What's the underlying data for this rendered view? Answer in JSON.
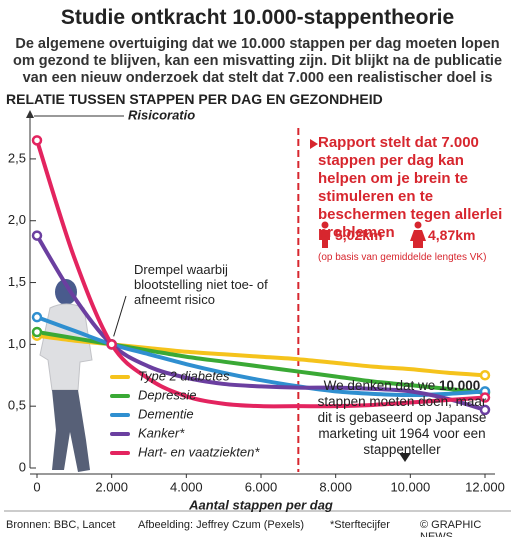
{
  "header": {
    "title": "Studie ontkracht 10.000-stappentheorie",
    "subtitle": "De algemene overtuiging dat we 10.000 stappen per dag moeten lopen om gezond te blijven, kan een misvatting zijn. Dit blijkt na de publicatie van een nieuw onderzoek dat stelt dat 7.000 een realistischer doel is"
  },
  "chart_data": {
    "type": "line",
    "title": "RELATIE TUSSEN STAPPEN PER DAG EN GEZONDHEID",
    "y_label": "Risicoratio",
    "x_label": "Aantal stappen per dag",
    "x": [
      0,
      1000,
      2000,
      3000,
      4000,
      5000,
      6000,
      7000,
      8000,
      9000,
      10000,
      11000,
      12000
    ],
    "series": [
      {
        "name": "Type 2 diabetes",
        "color": "#f5c31c",
        "values": [
          1.07,
          1.03,
          1.0,
          0.97,
          0.94,
          0.92,
          0.9,
          0.88,
          0.85,
          0.82,
          0.8,
          0.77,
          0.75
        ]
      },
      {
        "name": "Depressie",
        "color": "#3aa935",
        "values": [
          1.1,
          1.05,
          1.0,
          0.95,
          0.9,
          0.86,
          0.82,
          0.78,
          0.74,
          0.7,
          0.67,
          0.64,
          0.61
        ]
      },
      {
        "name": "Dementie",
        "color": "#2f8fd0",
        "values": [
          1.22,
          1.11,
          1.0,
          0.92,
          0.84,
          0.77,
          0.71,
          0.66,
          0.62,
          0.6,
          0.59,
          0.6,
          0.62
        ]
      },
      {
        "name": "Kanker*",
        "color": "#6b3fa0",
        "values": [
          1.88,
          1.38,
          1.0,
          0.82,
          0.73,
          0.68,
          0.66,
          0.65,
          0.65,
          0.64,
          0.62,
          0.56,
          0.47
        ]
      },
      {
        "name": "Hart- en vaatziekten*",
        "color": "#e3245f",
        "values": [
          2.65,
          1.7,
          1.0,
          0.72,
          0.58,
          0.52,
          0.5,
          0.5,
          0.5,
          0.51,
          0.53,
          0.55,
          0.57
        ]
      }
    ],
    "xlim": [
      0,
      12000
    ],
    "xticks": [
      0,
      {
        "value": 2000,
        "label": "2.000"
      },
      {
        "value": 4000,
        "label": "4.000"
      },
      {
        "value": 6000,
        "label": "6.000"
      },
      {
        "value": 8000,
        "label": "8.000"
      },
      {
        "value": 10000,
        "label": "10.000"
      },
      {
        "value": 12000,
        "label": "12.000"
      }
    ],
    "ylim": [
      0,
      2.75
    ],
    "yticks": [
      0,
      {
        "value": 0.5,
        "label": "0,5"
      },
      {
        "value": 1.0,
        "label": "1,0"
      },
      {
        "value": 1.5,
        "label": "1,5"
      },
      {
        "value": 2.0,
        "label": "2,0"
      },
      {
        "value": 2.5,
        "label": "2,5"
      }
    ],
    "reference_line": {
      "x": 7000,
      "color": "#d7262e"
    },
    "annotations": {
      "threshold": "Drempel waarbij blootstelling niet toe- of afneemt risico",
      "report": "Rapport stelt dat 7.000 stappen per dag kan helpen om je brein te stimuleren en te beschermen tegen allerlei problemen",
      "km_men": "5,02km",
      "km_women": "4,87km",
      "km_note": "(op basis van gemiddelde lengtes VK)",
      "note_before": "We denken dat we",
      "note_bold": "10.000",
      "note_after": "stappen moeten doen, maar dit is gebaseerd op Japanse marketing uit 1964 voor een stappenteller"
    }
  },
  "footer": {
    "sources": "Bronnen: BBC, Lancet",
    "image": "Afbeelding: Jeffrey Czum (Pexels)",
    "footnote": "*Sterftecijfer",
    "credit": "© GRAPHIC NEWS"
  }
}
